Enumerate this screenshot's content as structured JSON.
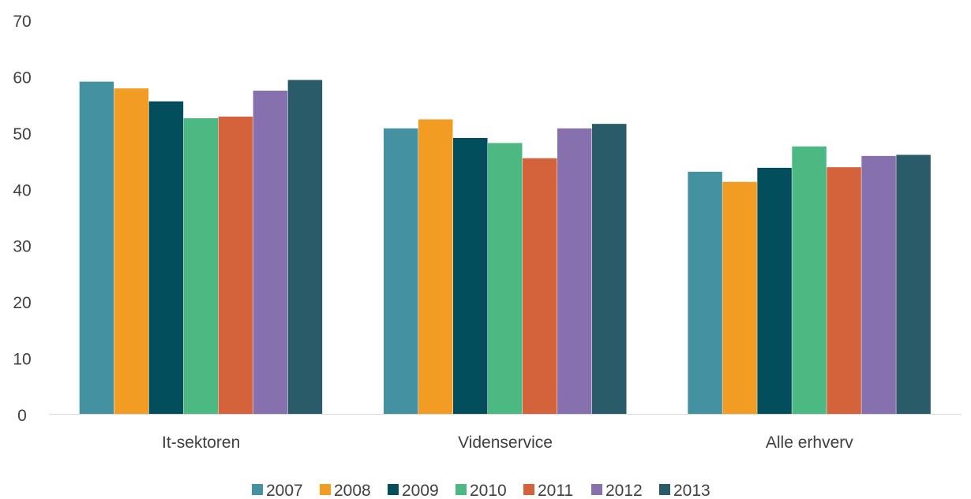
{
  "chart_data": {
    "type": "bar",
    "title": "",
    "xlabel": "",
    "ylabel": "",
    "ylim": [
      0,
      70
    ],
    "yticks": [
      "0",
      "10",
      "20",
      "30",
      "40",
      "50",
      "60",
      "70"
    ],
    "grid": false,
    "legend_position": "bottom",
    "categories": [
      "It-sektoren",
      "Videnservice",
      "Alle erhverv"
    ],
    "series": [
      {
        "name": "2007",
        "color": "#4491a1",
        "values": [
          59.0,
          50.7,
          43.0
        ]
      },
      {
        "name": "2008",
        "color": "#f29c23",
        "values": [
          57.8,
          52.3,
          41.2
        ]
      },
      {
        "name": "2009",
        "color": "#034e5c",
        "values": [
          55.5,
          49.0,
          43.7
        ]
      },
      {
        "name": "2010",
        "color": "#4cb983",
        "values": [
          52.5,
          48.1,
          47.5
        ]
      },
      {
        "name": "2011",
        "color": "#d4633b",
        "values": [
          52.8,
          45.4,
          43.8
        ]
      },
      {
        "name": "2012",
        "color": "#8670ae",
        "values": [
          57.4,
          50.7,
          45.8
        ]
      },
      {
        "name": "2013",
        "color": "#295b68",
        "values": [
          59.3,
          51.5,
          46.0
        ]
      }
    ]
  }
}
